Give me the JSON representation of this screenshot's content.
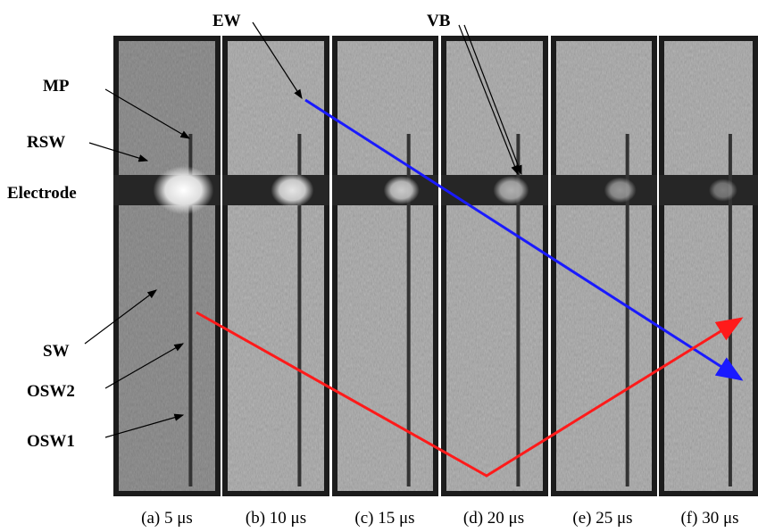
{
  "labels": [
    "EW",
    "VB",
    "MP",
    "RSW",
    "Electrode",
    "SW",
    "OSW2",
    "OSW1"
  ],
  "captions": [
    "(a) 5 μs",
    "(b) 10 μs",
    "(c) 15 μs",
    "(d) 20 μs",
    "(e) 25 μs",
    "(f) 30 μs"
  ]
}
